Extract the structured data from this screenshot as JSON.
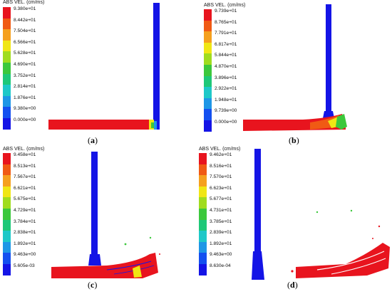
{
  "colors": [
    "#e8141e",
    "#f05a14",
    "#f5a01e",
    "#f0e614",
    "#a0dc1e",
    "#3cc83c",
    "#1ec878",
    "#1ec8c8",
    "#1e96e6",
    "#1450f0",
    "#1414e6"
  ],
  "panels": [
    {
      "id": "a",
      "legend_title": "ABS VEL. (cm/ms)",
      "ticks": [
        "9.380e+01",
        "8.442e+01",
        "7.504e+01",
        "6.566e+01",
        "5.628e+01",
        "4.690e+01",
        "3.752e+01",
        "2.814e+01",
        "1.876e+01",
        "9.380e+00",
        "0.000e+00"
      ],
      "label": "a"
    },
    {
      "id": "b",
      "legend_title": "ABS VEL. (cm/ms)",
      "ticks": [
        "9.739e+01",
        "8.765e+01",
        "7.791e+01",
        "6.817e+01",
        "5.844e+01",
        "4.870e+01",
        "3.896e+01",
        "2.922e+01",
        "1.948e+01",
        "9.739e+00",
        "0.000e+00"
      ],
      "label": "b"
    },
    {
      "id": "c",
      "legend_title": "ABS VEL. (cm/ms)",
      "ticks": [
        "9.458e+01",
        "8.513e+01",
        "7.567e+01",
        "6.621e+01",
        "5.675e+01",
        "4.729e+01",
        "3.784e+01",
        "2.838e+01",
        "1.892e+01",
        "9.463e+00",
        "5.605e-03"
      ],
      "label": "c"
    },
    {
      "id": "d",
      "legend_title": "ABS VEL. (cm/ms)",
      "ticks": [
        "9.462e+01",
        "8.516e+01",
        "7.570e+01",
        "6.623e+01",
        "5.677e+01",
        "4.731e+01",
        "3.785e+01",
        "2.839e+01",
        "1.892e+01",
        "9.463e+00",
        "8.630e-04"
      ],
      "label": "d"
    }
  ]
}
